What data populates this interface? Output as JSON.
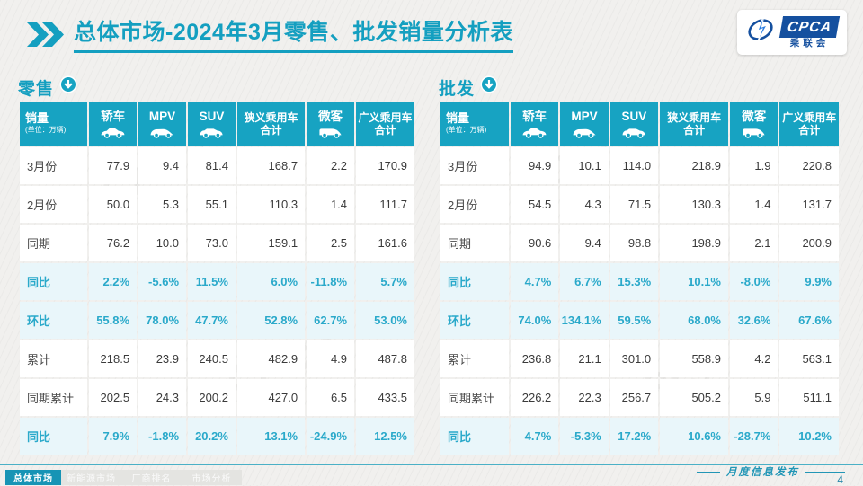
{
  "colors": {
    "accent": "#17a3c2",
    "accent_dark": "#1794b5",
    "pct_text": "#2aa9ca",
    "pct_row_bg": "#e9f6fa",
    "logo_blue": "#15509f"
  },
  "header": {
    "title": "总体市场-2024年3月零售、批发销量分析表",
    "logo": {
      "acronym": "CPCA",
      "cn": "乘联会"
    }
  },
  "columns": [
    {
      "label": "销量",
      "sub": "(单位：万辆)",
      "icon": ""
    },
    {
      "label": "轿车",
      "icon": "sedan-icon"
    },
    {
      "label": "MPV",
      "icon": "mpv-icon"
    },
    {
      "label": "SUV",
      "icon": "suv-icon"
    },
    {
      "label": "狭义乘用车",
      "label2": "合计",
      "icon": ""
    },
    {
      "label": "微客",
      "icon": "microvan-icon"
    },
    {
      "label": "广义乘用车",
      "label2": "合计",
      "icon": ""
    }
  ],
  "retail": {
    "section_label": "零售",
    "section_icon": "download-circle-icon",
    "rows": [
      {
        "label": "3月份",
        "type": "data",
        "values": [
          "77.9",
          "9.4",
          "81.4",
          "168.7",
          "2.2",
          "170.9"
        ]
      },
      {
        "label": "2月份",
        "type": "data",
        "values": [
          "50.0",
          "5.3",
          "55.1",
          "110.3",
          "1.4",
          "111.7"
        ]
      },
      {
        "label": "同期",
        "type": "data",
        "values": [
          "76.2",
          "10.0",
          "73.0",
          "159.1",
          "2.5",
          "161.6"
        ]
      },
      {
        "label": "同比",
        "type": "pct",
        "values": [
          "2.2%",
          "-5.6%",
          "11.5%",
          "6.0%",
          "-11.8%",
          "5.7%"
        ]
      },
      {
        "label": "环比",
        "type": "pct",
        "values": [
          "55.8%",
          "78.0%",
          "47.7%",
          "52.8%",
          "62.7%",
          "53.0%"
        ]
      },
      {
        "label": "累计",
        "type": "data",
        "values": [
          "218.5",
          "23.9",
          "240.5",
          "482.9",
          "4.9",
          "487.8"
        ]
      },
      {
        "label": "同期累计",
        "type": "data",
        "values": [
          "202.5",
          "24.3",
          "200.2",
          "427.0",
          "6.5",
          "433.5"
        ]
      },
      {
        "label": "同比",
        "type": "pct",
        "values": [
          "7.9%",
          "-1.8%",
          "20.2%",
          "13.1%",
          "-24.9%",
          "12.5%"
        ]
      }
    ]
  },
  "wholesale": {
    "section_label": "批发",
    "section_icon": "download-circle-icon",
    "rows": [
      {
        "label": "3月份",
        "type": "data",
        "values": [
          "94.9",
          "10.1",
          "114.0",
          "218.9",
          "1.9",
          "220.8"
        ]
      },
      {
        "label": "2月份",
        "type": "data",
        "values": [
          "54.5",
          "4.3",
          "71.5",
          "130.3",
          "1.4",
          "131.7"
        ]
      },
      {
        "label": "同期",
        "type": "data",
        "values": [
          "90.6",
          "9.4",
          "98.8",
          "198.9",
          "2.1",
          "200.9"
        ]
      },
      {
        "label": "同比",
        "type": "pct",
        "values": [
          "4.7%",
          "6.7%",
          "15.3%",
          "10.1%",
          "-8.0%",
          "9.9%"
        ]
      },
      {
        "label": "环比",
        "type": "pct",
        "values": [
          "74.0%",
          "134.1%",
          "59.5%",
          "68.0%",
          "32.6%",
          "67.6%"
        ]
      },
      {
        "label": "累计",
        "type": "data",
        "values": [
          "236.8",
          "21.1",
          "301.0",
          "558.9",
          "4.2",
          "563.1"
        ]
      },
      {
        "label": "同期累计",
        "type": "data",
        "values": [
          "226.2",
          "22.3",
          "256.7",
          "505.2",
          "5.9",
          "511.1"
        ]
      },
      {
        "label": "同比",
        "type": "pct",
        "values": [
          "4.7%",
          "-5.3%",
          "17.2%",
          "10.6%",
          "-28.7%",
          "10.2%"
        ]
      }
    ]
  },
  "footer": {
    "tabs": [
      {
        "label": "总体市场",
        "active": true
      },
      {
        "label": "新能源市场",
        "active": false
      },
      {
        "label": "厂商排名",
        "active": false
      },
      {
        "label": "市场分析",
        "active": false
      }
    ],
    "publish_note": "月度信息发布",
    "page_number": "4"
  },
  "watermark": "CPCA"
}
